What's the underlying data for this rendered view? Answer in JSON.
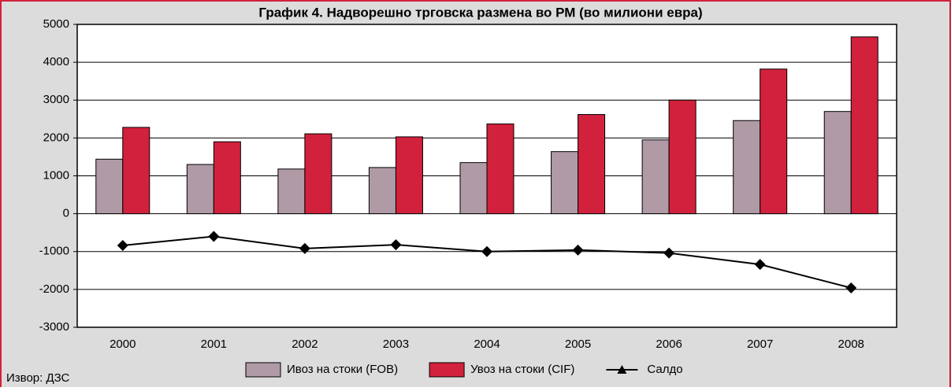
{
  "chart_data": {
    "type": "bar_line",
    "title": "График 4. Надворешно трговска размена во РМ (во милиони евра)",
    "source": "Извор: ДЗС",
    "categories": [
      "2000",
      "2001",
      "2002",
      "2003",
      "2004",
      "2005",
      "2006",
      "2007",
      "2008"
    ],
    "series": [
      {
        "name": "Ивоз на стоки (FOB)",
        "type": "bar",
        "color": "#b09aa6",
        "values": [
          1440,
          1300,
          1180,
          1220,
          1350,
          1640,
          1950,
          2460,
          2700
        ]
      },
      {
        "name": "Увоз на стоки  (CIF)",
        "type": "bar",
        "color": "#d2213c",
        "values": [
          2280,
          1900,
          2110,
          2030,
          2370,
          2620,
          3000,
          3820,
          4670
        ]
      },
      {
        "name": "Салдо",
        "type": "line",
        "color": "#000000",
        "values": [
          -840,
          -600,
          -920,
          -820,
          -1000,
          -960,
          -1040,
          -1340,
          -1960
        ]
      }
    ],
    "ylim": [
      -3000,
      5000
    ],
    "yticks": [
      -3000,
      -2000,
      -1000,
      0,
      1000,
      2000,
      3000,
      4000,
      5000
    ],
    "grid": true,
    "legend": "bottom"
  }
}
